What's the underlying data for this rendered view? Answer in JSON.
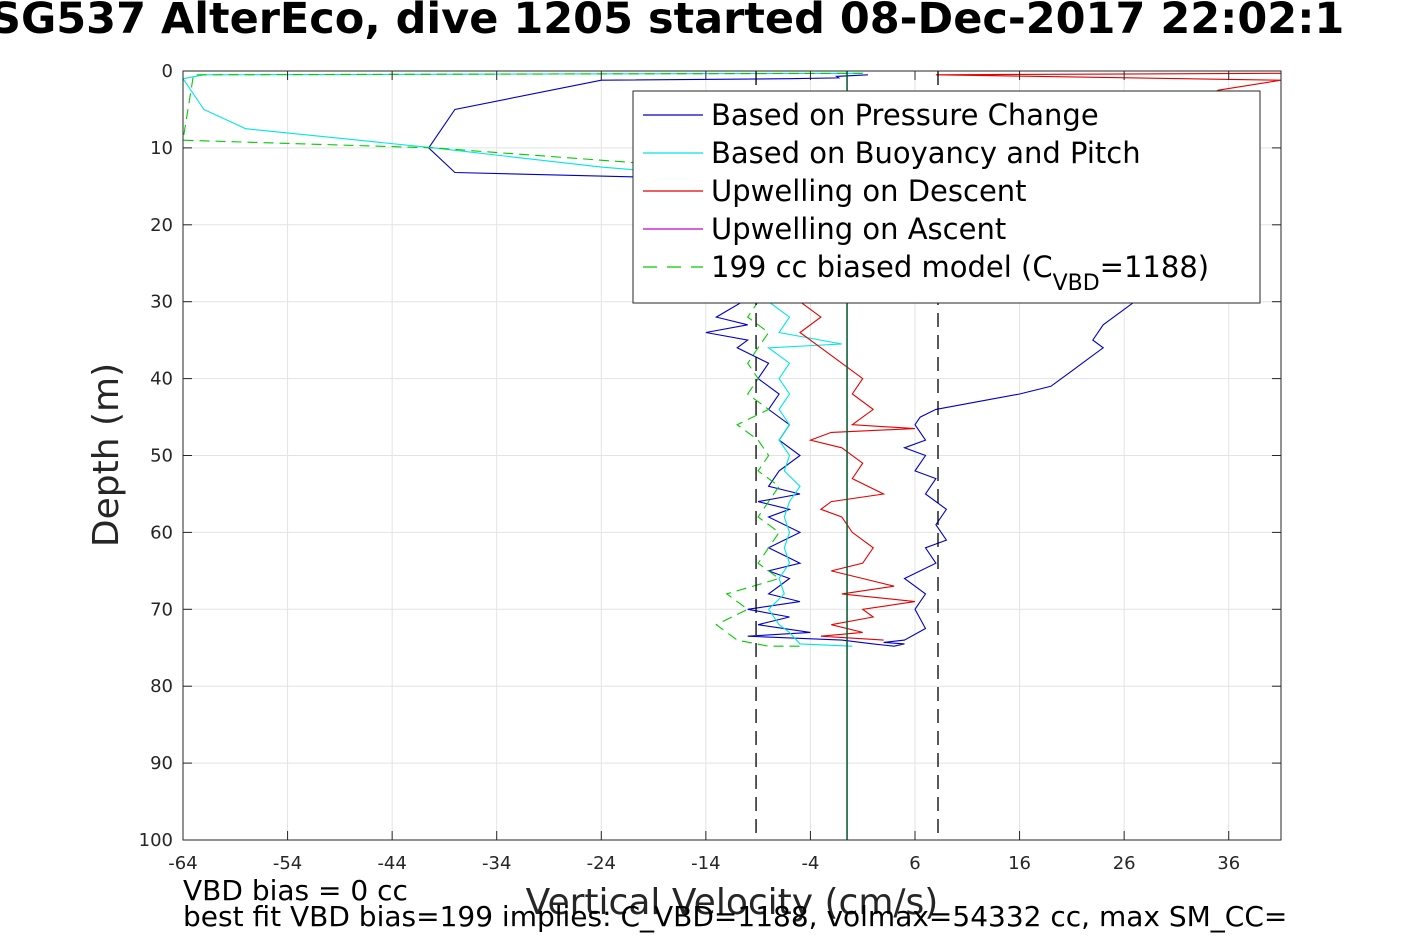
{
  "title": "SG537 AlterEco, dive 1205 started 08-Dec-2017 22:02:1",
  "notes": {
    "vbd_bias": "VBD bias = 0 cc",
    "best_fit": "best fit VBD bias=199 implies: C_VBD=1188, volmax=54332 cc, max SM_CC="
  },
  "chart_data": {
    "type": "line",
    "xlabel": "Vertical Velocity (cm/s)",
    "ylabel": "Depth (m)",
    "xlim": [
      -64,
      41
    ],
    "ylim": [
      100,
      0
    ],
    "y_reversed": true,
    "grid": true,
    "xticks": [
      "-64",
      "-54",
      "-44",
      "-34",
      "-24",
      "-14",
      "-4",
      "6",
      "16",
      "26",
      "36"
    ],
    "yticks": [
      "0",
      "10",
      "20",
      "30",
      "40",
      "50",
      "60",
      "70",
      "80",
      "90",
      "100"
    ],
    "legend_position": "top-right",
    "legend": [
      {
        "label": "Based on Pressure Change",
        "color": "#0000cc",
        "dash": false
      },
      {
        "label": "Based on Buoyancy and Pitch",
        "color": "#00e5e5",
        "dash": false
      },
      {
        "label": "Upwelling on Descent",
        "color": "#e60000",
        "dash": false
      },
      {
        "label": "Upwelling on Ascent",
        "color": "#cc00cc",
        "dash": false
      },
      {
        "label": "199 cc biased model (C",
        "sub": "VBD",
        "suffix": "=1188)",
        "color": "#00cc00",
        "dash": true
      }
    ],
    "reference_lines": [
      {
        "x": -9.2,
        "style": "dashed",
        "color": "#000000"
      },
      {
        "x": -0.5,
        "style": "solid",
        "color": "#000000"
      },
      {
        "x": 8.2,
        "style": "dashed",
        "color": "#000000"
      },
      {
        "x": -0.5,
        "style": "solid",
        "color": "#006633"
      }
    ],
    "series": [
      {
        "name": "Based on Pressure Change",
        "color": "#0000cc",
        "dashed": false,
        "points": [
          [
            1.5,
            0.5
          ],
          [
            -1.5,
            0.7
          ],
          [
            -1.3,
            0.9
          ],
          [
            -6,
            1
          ],
          [
            -24,
            1.2
          ],
          [
            -38,
            5
          ],
          [
            -40.5,
            10
          ],
          [
            -38,
            13.2
          ],
          [
            -14,
            14
          ],
          [
            -11,
            15
          ],
          [
            -10.5,
            30
          ],
          [
            -13,
            32
          ],
          [
            -10,
            33
          ],
          [
            -14,
            34
          ],
          [
            -10,
            35
          ],
          [
            -11,
            36
          ],
          [
            -8,
            38
          ],
          [
            -9,
            40
          ],
          [
            -7,
            42
          ],
          [
            -8,
            44
          ],
          [
            -6,
            46
          ],
          [
            -7,
            48
          ],
          [
            -5,
            50
          ],
          [
            -7,
            52
          ],
          [
            -8,
            54
          ],
          [
            -5,
            55
          ],
          [
            -9,
            56
          ],
          [
            -6,
            57
          ],
          [
            -8,
            58
          ],
          [
            -5,
            60
          ],
          [
            -8,
            62
          ],
          [
            -5,
            64
          ],
          [
            -8,
            65
          ],
          [
            -6,
            66
          ],
          [
            -8,
            68
          ],
          [
            -5,
            69
          ],
          [
            -10,
            70
          ],
          [
            -6,
            71
          ],
          [
            -9,
            72
          ],
          [
            -4,
            73
          ],
          [
            -10,
            73.5
          ],
          [
            -1,
            74
          ],
          [
            2,
            74.5
          ],
          [
            4,
            74.8
          ],
          [
            5,
            74.5
          ],
          [
            3,
            74.3
          ],
          [
            5,
            74
          ],
          [
            7,
            72.5
          ],
          [
            6,
            70
          ],
          [
            7,
            68
          ],
          [
            5,
            66
          ],
          [
            8,
            64
          ],
          [
            7,
            62
          ],
          [
            9,
            61
          ],
          [
            8,
            59
          ],
          [
            9,
            57
          ],
          [
            7,
            55
          ],
          [
            8,
            53
          ],
          [
            6,
            52
          ],
          [
            7,
            50
          ],
          [
            5,
            49
          ],
          [
            7,
            48
          ],
          [
            6,
            46
          ],
          [
            6.5,
            45
          ],
          [
            8,
            44
          ],
          [
            12,
            43
          ],
          [
            16,
            42
          ],
          [
            19,
            41
          ],
          [
            20,
            40
          ],
          [
            21,
            39
          ],
          [
            22,
            38
          ],
          [
            24,
            36
          ],
          [
            23,
            35
          ],
          [
            24,
            33
          ],
          [
            26,
            31
          ],
          [
            27,
            30
          ]
        ]
      },
      {
        "name": "Based on Buoyancy and Pitch",
        "color": "#00e5e5",
        "dashed": false,
        "points": [
          [
            1,
            0.3
          ],
          [
            -62,
            0.5
          ],
          [
            -64,
            1
          ],
          [
            -63,
            3
          ],
          [
            -62,
            5
          ],
          [
            -58,
            7.5
          ],
          [
            -40,
            10
          ],
          [
            -24,
            12.5
          ],
          [
            -15,
            13.5
          ],
          [
            -8,
            30
          ],
          [
            -6,
            32
          ],
          [
            -7,
            34
          ],
          [
            -1,
            35.5
          ],
          [
            -8,
            36
          ],
          [
            -6,
            38
          ],
          [
            -7,
            40
          ],
          [
            -6,
            42
          ],
          [
            -7,
            44
          ],
          [
            -6,
            46
          ],
          [
            -7,
            48
          ],
          [
            -6,
            50
          ],
          [
            -6.5,
            52
          ],
          [
            -5,
            54
          ],
          [
            -6,
            56
          ],
          [
            -6.5,
            58
          ],
          [
            -6,
            60
          ],
          [
            -6.5,
            62
          ],
          [
            -6,
            64
          ],
          [
            -7,
            66
          ],
          [
            -6.5,
            68
          ],
          [
            -8,
            70
          ],
          [
            -7,
            72
          ],
          [
            -6,
            73
          ],
          [
            -5,
            74.5
          ],
          [
            0,
            74.8
          ]
        ]
      },
      {
        "name": "Upwelling on Descent",
        "color": "#e60000",
        "dashed": false,
        "points": [
          [
            41,
            0.3
          ],
          [
            8,
            0.5
          ],
          [
            41,
            1.2
          ],
          [
            35,
            2.5
          ],
          [
            -5,
            30
          ],
          [
            -3,
            32
          ],
          [
            -5,
            34
          ],
          [
            -3,
            36
          ],
          [
            -1,
            38
          ],
          [
            1,
            40
          ],
          [
            0,
            42
          ],
          [
            2,
            44
          ],
          [
            0,
            46
          ],
          [
            6,
            46.5
          ],
          [
            -2,
            47
          ],
          [
            -4,
            48
          ],
          [
            -1,
            49
          ],
          [
            1,
            51
          ],
          [
            0,
            53
          ],
          [
            3,
            55
          ],
          [
            -2,
            56
          ],
          [
            -3,
            57
          ],
          [
            -1,
            58
          ],
          [
            0,
            60
          ],
          [
            2,
            62
          ],
          [
            1,
            64
          ],
          [
            -2,
            65
          ],
          [
            1,
            66
          ],
          [
            4,
            67
          ],
          [
            -1,
            68
          ],
          [
            6,
            69
          ],
          [
            1,
            70
          ],
          [
            2,
            71
          ],
          [
            -2,
            72
          ],
          [
            1,
            73
          ],
          [
            -3,
            73.5
          ],
          [
            3,
            74
          ]
        ]
      },
      {
        "name": "Upwelling on Ascent",
        "color": "#cc00cc",
        "dashed": false,
        "points": []
      },
      {
        "name": "199 cc biased model (C_VBD=1188)",
        "color": "#00cc00",
        "dashed": true,
        "points": [
          [
            1,
            0.3
          ],
          [
            -63,
            0.5
          ],
          [
            -64,
            9
          ],
          [
            -40,
            10
          ],
          [
            -20,
            12
          ],
          [
            -9,
            13
          ],
          [
            -9,
            30
          ],
          [
            -10,
            32
          ],
          [
            -8,
            34
          ],
          [
            -9,
            36
          ],
          [
            -10,
            38
          ],
          [
            -9,
            40
          ],
          [
            -10,
            42
          ],
          [
            -8,
            44
          ],
          [
            -11,
            46
          ],
          [
            -9,
            48
          ],
          [
            -8,
            50
          ],
          [
            -9,
            52
          ],
          [
            -7,
            54
          ],
          [
            -8,
            56
          ],
          [
            -9,
            58
          ],
          [
            -7,
            60
          ],
          [
            -8,
            62
          ],
          [
            -9,
            64
          ],
          [
            -7,
            66
          ],
          [
            -12,
            68
          ],
          [
            -10,
            70
          ],
          [
            -13,
            72
          ],
          [
            -11,
            74
          ],
          [
            -8,
            74.8
          ],
          [
            -5,
            74.8
          ]
        ]
      }
    ]
  }
}
